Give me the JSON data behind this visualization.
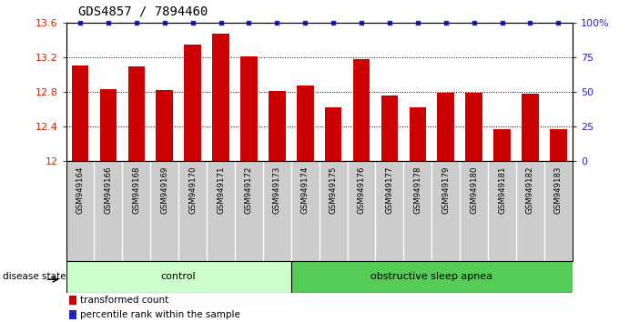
{
  "title": "GDS4857 / 7894460",
  "samples": [
    "GSM949164",
    "GSM949166",
    "GSM949168",
    "GSM949169",
    "GSM949170",
    "GSM949171",
    "GSM949172",
    "GSM949173",
    "GSM949174",
    "GSM949175",
    "GSM949176",
    "GSM949177",
    "GSM949178",
    "GSM949179",
    "GSM949180",
    "GSM949181",
    "GSM949182",
    "GSM949183"
  ],
  "transformed_counts": [
    13.1,
    12.83,
    13.09,
    12.82,
    13.35,
    13.47,
    13.21,
    12.81,
    12.87,
    12.62,
    13.18,
    12.76,
    12.62,
    12.79,
    12.79,
    12.37,
    12.78,
    12.37
  ],
  "percentile_ranks": [
    100,
    100,
    100,
    100,
    100,
    100,
    100,
    100,
    100,
    100,
    100,
    100,
    100,
    100,
    100,
    100,
    100,
    100
  ],
  "control_count": 8,
  "bar_color": "#cc0000",
  "dot_color": "#2222cc",
  "ylim_left": [
    12,
    13.6
  ],
  "ylim_right": [
    0,
    100
  ],
  "yticks_left": [
    12,
    12.4,
    12.8,
    13.2,
    13.6
  ],
  "yticks_right": [
    0,
    25,
    50,
    75,
    100
  ],
  "ytick_labels_left": [
    "12",
    "12.4",
    "12.8",
    "13.2",
    "13.6"
  ],
  "ytick_labels_right": [
    "0",
    "25",
    "50",
    "75",
    "100%"
  ],
  "control_label": "control",
  "disease_label": "obstructive sleep apnea",
  "control_color": "#ccffcc",
  "disease_color": "#55cc55",
  "legend_bar_label": "transformed count",
  "legend_dot_label": "percentile rank within the sample",
  "disease_state_label": "disease state",
  "left_tick_color": "#cc2200",
  "right_tick_color": "#2222cc",
  "background_color": "#ffffff",
  "grid_color": "#000000",
  "xtick_bg_color": "#cccccc"
}
